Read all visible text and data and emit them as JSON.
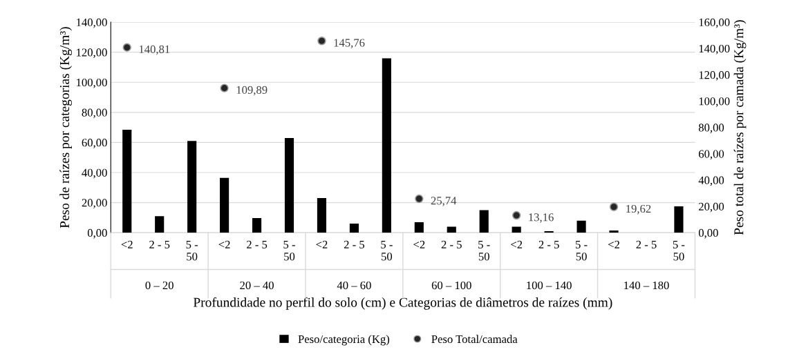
{
  "chart_data": {
    "type": "bar",
    "xlabel": "Profundidade no perfil do solo (cm) e Categorias de diâmetros de raízes (mm)",
    "ylabel": "Peso de raízes por categorias (Kg/m³)",
    "y2label": "Peso total de raízes por camada (Kg/m³)",
    "categories": [
      "<2",
      "2 - 5",
      "5 - 50",
      "<2",
      "2 - 5",
      "5 - 50",
      "<2",
      "2 - 5",
      "5 - 50",
      "<2",
      "2 - 5",
      "5 - 50",
      "<2",
      "2 - 5",
      "5 - 50",
      "<2",
      "2 - 5",
      "5 - 50"
    ],
    "annotations": [
      "0 – 20",
      "20 – 40",
      "40 – 60",
      "60 – 100",
      "100 – 140",
      "140 – 180"
    ],
    "series": [
      {
        "name": "Peso/categoria (Kg)",
        "color": "#000000",
        "values": [
          68.5,
          11,
          61,
          36.5,
          9.7,
          63,
          23,
          6,
          116,
          7,
          4,
          15,
          4,
          1,
          8,
          1.5,
          0,
          17.5
        ]
      },
      {
        "name": "Peso Total/camada",
        "type": "scatter",
        "axis": "y2",
        "color": "#262626",
        "marker": "circle",
        "values": [
          140.81,
          null,
          null,
          109.89,
          null,
          null,
          145.76,
          null,
          null,
          25.74,
          null,
          null,
          13.16,
          null,
          null,
          19.62,
          null,
          null
        ],
        "value_labels": [
          "140,81",
          null,
          null,
          "109,89",
          null,
          null,
          "145,76",
          null,
          null,
          "25,74",
          null,
          null,
          "13,16",
          null,
          null,
          "19,62",
          null,
          null
        ]
      }
    ],
    "ylim": [
      0,
      140
    ],
    "yticks": [
      {
        "value": 0,
        "label": "0,00"
      },
      {
        "value": 20,
        "label": "20,00"
      },
      {
        "value": 40,
        "label": "40,00"
      },
      {
        "value": 60,
        "label": "60,00"
      },
      {
        "value": 80,
        "label": "80,00"
      },
      {
        "value": 100,
        "label": "100,00"
      },
      {
        "value": 120,
        "label": "120,00"
      },
      {
        "value": 140,
        "label": "140,00"
      }
    ],
    "y2lim": [
      0,
      160
    ],
    "y2ticks": [
      {
        "value": 0,
        "label": "0,00"
      },
      {
        "value": 20,
        "label": "20,00"
      },
      {
        "value": 40,
        "label": "40,00"
      },
      {
        "value": 60,
        "label": "60,00"
      },
      {
        "value": 80,
        "label": "80,00"
      },
      {
        "value": 100,
        "label": "100,00"
      },
      {
        "value": 120,
        "label": "120,00"
      },
      {
        "value": 140,
        "label": "140,00"
      },
      {
        "value": 160,
        "label": "160,00"
      }
    ],
    "grid": "y",
    "legend": "bottom"
  }
}
